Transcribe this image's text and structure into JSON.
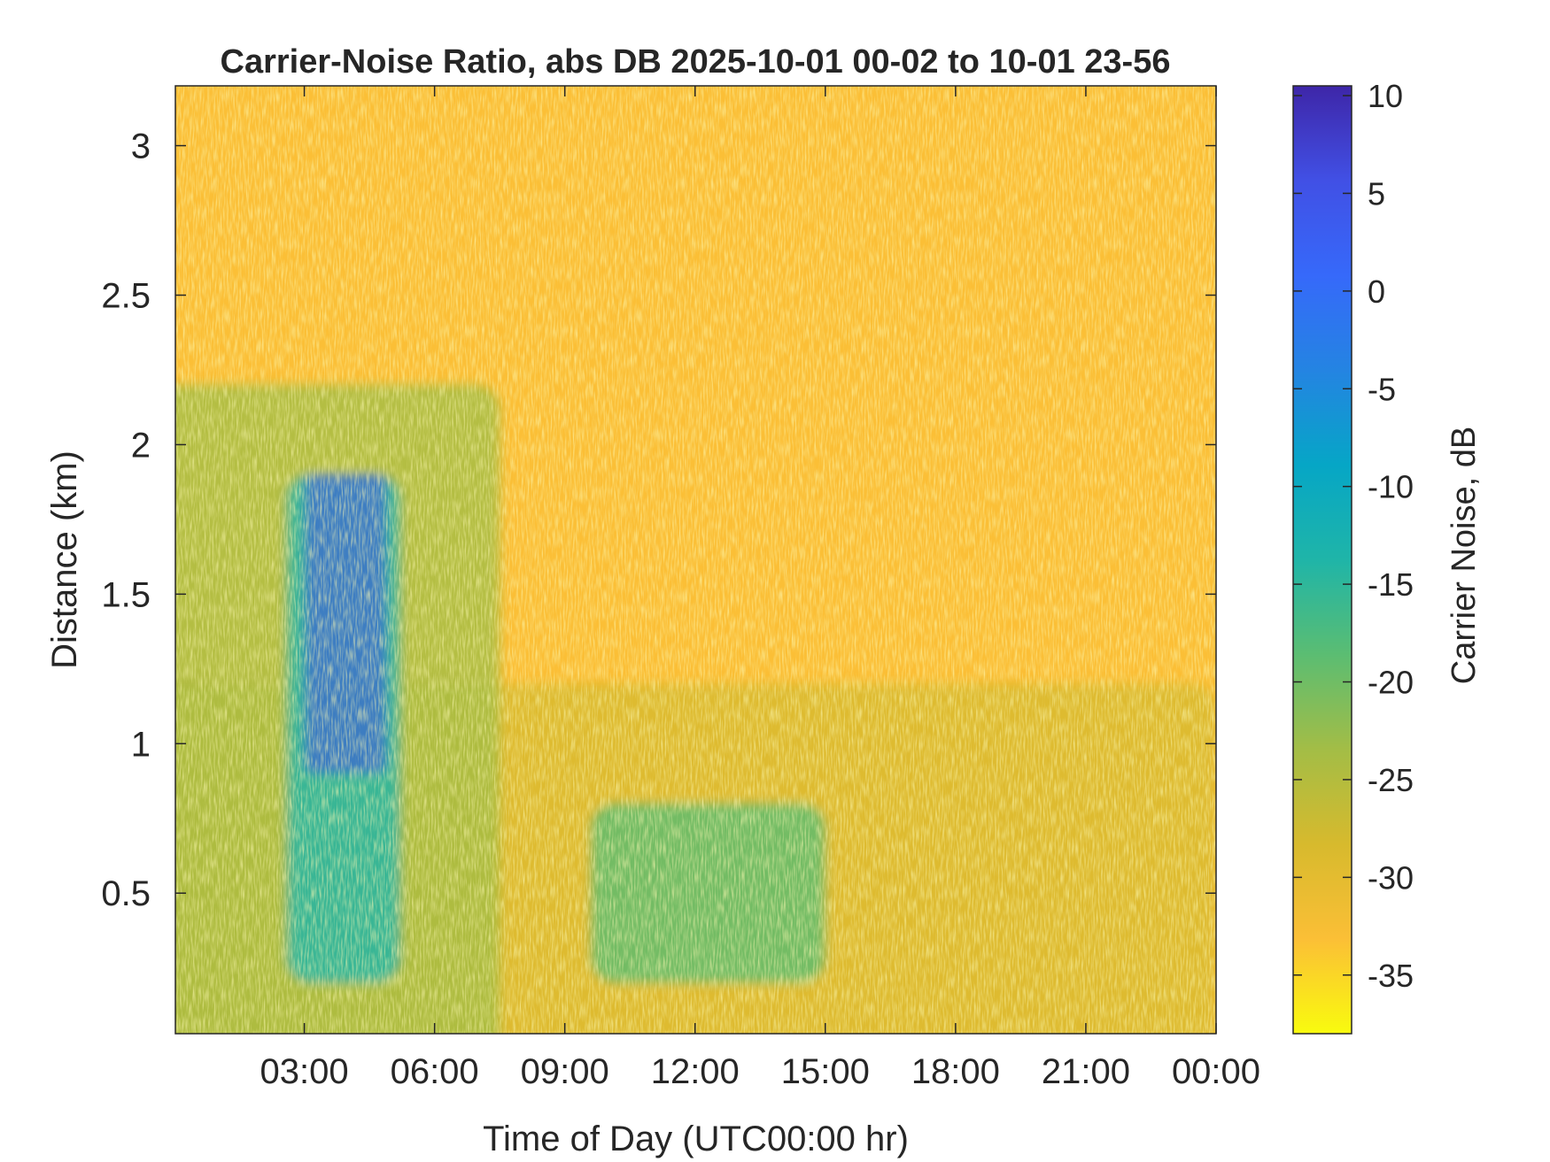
{
  "chart_data": {
    "type": "heatmap",
    "title": "Carrier-Noise Ratio, abs DB 2025-10-01 00-02 to 10-01 23-56",
    "xlabel": "Time of Day (UTC00:00 hr)",
    "ylabel": "Distance (km)",
    "x_unit": "hours",
    "xlim": [
      0.03,
      24.0
    ],
    "ylim": [
      0.03,
      3.2
    ],
    "x_ticks": [
      {
        "value": 3,
        "label": "03:00"
      },
      {
        "value": 6,
        "label": "06:00"
      },
      {
        "value": 9,
        "label": "09:00"
      },
      {
        "value": 12,
        "label": "12:00"
      },
      {
        "value": 15,
        "label": "15:00"
      },
      {
        "value": 18,
        "label": "18:00"
      },
      {
        "value": 21,
        "label": "21:00"
      },
      {
        "value": 24,
        "label": "00:00"
      }
    ],
    "y_ticks": [
      {
        "value": 0.5,
        "label": "0.5"
      },
      {
        "value": 1.0,
        "label": "1"
      },
      {
        "value": 1.5,
        "label": "1.5"
      },
      {
        "value": 2.0,
        "label": "2"
      },
      {
        "value": 2.5,
        "label": "2.5"
      },
      {
        "value": 3.0,
        "label": "3"
      }
    ],
    "colorbar": {
      "label": "Carrier Noise, dB",
      "range": [
        -38,
        10.5
      ],
      "ticks": [
        {
          "value": 10,
          "label": "10"
        },
        {
          "value": 5,
          "label": "5"
        },
        {
          "value": 0,
          "label": "0"
        },
        {
          "value": -5,
          "label": "-5"
        },
        {
          "value": -10,
          "label": "-10"
        },
        {
          "value": -15,
          "label": "-15"
        },
        {
          "value": -20,
          "label": "-20"
        },
        {
          "value": -25,
          "label": "-25"
        },
        {
          "value": -30,
          "label": "-30"
        },
        {
          "value": -35,
          "label": "-35"
        }
      ],
      "colormap": [
        "#f9fb0e",
        "#fbbf36",
        "#d7ba2d",
        "#a3bd46",
        "#5bbd72",
        "#1fb5a8",
        "#06a6c6",
        "#2484e2",
        "#3669fa",
        "#4150e5",
        "#3e26a8"
      ]
    },
    "background_value": -31,
    "features": [
      {
        "region": "low-level layer",
        "time_range": [
          0.03,
          24.0
        ],
        "distance_range": [
          0.03,
          1.2
        ],
        "value": -27
      },
      {
        "region": "early-morning layer",
        "time_range": [
          0.03,
          7.5
        ],
        "distance_range": [
          0.03,
          2.2
        ],
        "value": -22
      },
      {
        "region": "plume",
        "time_range": [
          2.6,
          5.2
        ],
        "distance_range": [
          0.2,
          1.9
        ],
        "value": -14
      },
      {
        "region": "core",
        "time_range": [
          3.0,
          4.9
        ],
        "distance_range": [
          0.9,
          1.9
        ],
        "value": 6
      },
      {
        "region": "midday layer",
        "time_range": [
          9.6,
          15.0
        ],
        "distance_range": [
          0.2,
          0.8
        ],
        "value": -18
      }
    ]
  }
}
